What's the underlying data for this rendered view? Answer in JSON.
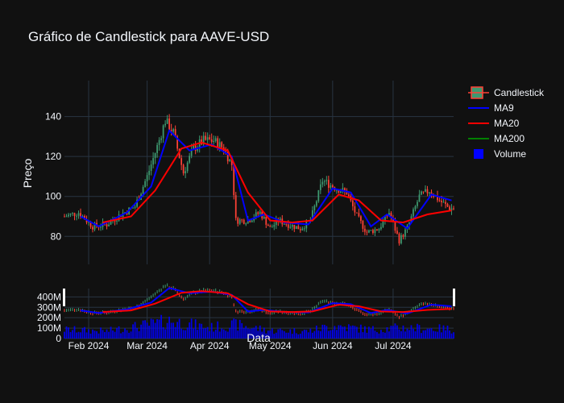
{
  "chart_data": {
    "type": "candlestick",
    "title": "Gráfico de Candlestick para AAVE-USD",
    "xlabel": "Data",
    "ylabel": "Preço",
    "ylim": [
      66,
      158
    ],
    "volume_ylim": [
      0,
      480000000
    ],
    "x_range": [
      "2024-01-20",
      "2024-07-31"
    ],
    "x_ticks": [
      {
        "date": "2024-02-01",
        "label": "Feb 2024"
      },
      {
        "date": "2024-03-01",
        "label": "Mar 2024"
      },
      {
        "date": "2024-04-01",
        "label": "Apr 2024"
      },
      {
        "date": "2024-05-01",
        "label": "May 2024"
      },
      {
        "date": "2024-06-01",
        "label": "Jun 2024"
      },
      {
        "date": "2024-07-01",
        "label": "Jul 2024"
      }
    ],
    "y_ticks": [
      80,
      100,
      120,
      140
    ],
    "volume_ticks": [
      {
        "value": 0,
        "label": "0"
      },
      {
        "value": 100000000,
        "label": "100M"
      },
      {
        "value": 200000000,
        "label": "200M"
      },
      {
        "value": 300000000,
        "label": "300M"
      },
      {
        "value": 400000000,
        "label": "400M"
      }
    ],
    "legend": {
      "position": "top-right",
      "entries": [
        {
          "name": "Candlestick",
          "color": "#3d9970"
        },
        {
          "name": "MA9",
          "color": "#0000ff"
        },
        {
          "name": "MA20",
          "color": "#ff0000"
        },
        {
          "name": "MA200",
          "color": "#008000"
        },
        {
          "name": "Volume",
          "color": "#0000ff"
        }
      ]
    },
    "colors": {
      "up": "#3d9970",
      "down": "#ff4136",
      "ma9": "#0000ff",
      "ma20": "#ff0000",
      "ma200": "#008000",
      "volume": "#0000ff",
      "grid": "#283442",
      "background": "#111111"
    },
    "close_anchors": [
      [
        "2024-01-20",
        90
      ],
      [
        "2024-01-27",
        92
      ],
      [
        "2024-02-03",
        85
      ],
      [
        "2024-02-10",
        86
      ],
      [
        "2024-02-17",
        91
      ],
      [
        "2024-02-24",
        95
      ],
      [
        "2024-03-01",
        110
      ],
      [
        "2024-03-06",
        125
      ],
      [
        "2024-03-10",
        138
      ],
      [
        "2024-03-14",
        132
      ],
      [
        "2024-03-19",
        112
      ],
      [
        "2024-03-24",
        124
      ],
      [
        "2024-03-29",
        128
      ],
      [
        "2024-04-03",
        128
      ],
      [
        "2024-04-08",
        124
      ],
      [
        "2024-04-12",
        116
      ],
      [
        "2024-04-14",
        88
      ],
      [
        "2024-04-20",
        88
      ],
      [
        "2024-04-26",
        92
      ],
      [
        "2024-05-01",
        84
      ],
      [
        "2024-05-05",
        88
      ],
      [
        "2024-05-10",
        86
      ],
      [
        "2024-05-16",
        84
      ],
      [
        "2024-05-21",
        88
      ],
      [
        "2024-05-27",
        108
      ],
      [
        "2024-06-03",
        104
      ],
      [
        "2024-06-08",
        102
      ],
      [
        "2024-06-13",
        90
      ],
      [
        "2024-06-18",
        82
      ],
      [
        "2024-06-24",
        84
      ],
      [
        "2024-06-29",
        92
      ],
      [
        "2024-07-04",
        78
      ],
      [
        "2024-07-08",
        84
      ],
      [
        "2024-07-14",
        100
      ],
      [
        "2024-07-19",
        103
      ],
      [
        "2024-07-24",
        98
      ],
      [
        "2024-07-29",
        94
      ]
    ],
    "ma9_anchors": [
      [
        "2024-01-28",
        90
      ],
      [
        "2024-02-06",
        85
      ],
      [
        "2024-02-20",
        92
      ],
      [
        "2024-03-03",
        105
      ],
      [
        "2024-03-12",
        133
      ],
      [
        "2024-03-22",
        123
      ],
      [
        "2024-04-02",
        126
      ],
      [
        "2024-04-12",
        120
      ],
      [
        "2024-04-20",
        88
      ],
      [
        "2024-04-28",
        91
      ],
      [
        "2024-05-08",
        87
      ],
      [
        "2024-05-20",
        86
      ],
      [
        "2024-06-01",
        104
      ],
      [
        "2024-06-10",
        102
      ],
      [
        "2024-06-20",
        85
      ],
      [
        "2024-06-28",
        91
      ],
      [
        "2024-07-08",
        84
      ],
      [
        "2024-07-20",
        101
      ],
      [
        "2024-07-30",
        98
      ]
    ],
    "ma20_anchors": [
      [
        "2024-02-08",
        87
      ],
      [
        "2024-02-22",
        90
      ],
      [
        "2024-03-05",
        103
      ],
      [
        "2024-03-18",
        124
      ],
      [
        "2024-03-28",
        127
      ],
      [
        "2024-04-10",
        123
      ],
      [
        "2024-04-20",
        102
      ],
      [
        "2024-05-01",
        88
      ],
      [
        "2024-05-12",
        87
      ],
      [
        "2024-05-22",
        88
      ],
      [
        "2024-06-04",
        101
      ],
      [
        "2024-06-14",
        98
      ],
      [
        "2024-06-25",
        88
      ],
      [
        "2024-07-06",
        87
      ],
      [
        "2024-07-18",
        91
      ],
      [
        "2024-07-30",
        93
      ]
    ],
    "volume_anchors": [
      [
        "2024-01-20",
        90000000
      ],
      [
        "2024-02-10",
        75000000
      ],
      [
        "2024-03-05",
        150000000
      ],
      [
        "2024-03-12",
        180000000
      ],
      [
        "2024-04-01",
        110000000
      ],
      [
        "2024-04-14",
        140000000
      ],
      [
        "2024-05-01",
        80000000
      ],
      [
        "2024-05-20",
        75000000
      ],
      [
        "2024-06-01",
        130000000
      ],
      [
        "2024-06-20",
        90000000
      ],
      [
        "2024-07-05",
        110000000
      ],
      [
        "2024-07-20",
        100000000
      ],
      [
        "2024-07-31",
        95000000
      ]
    ]
  }
}
